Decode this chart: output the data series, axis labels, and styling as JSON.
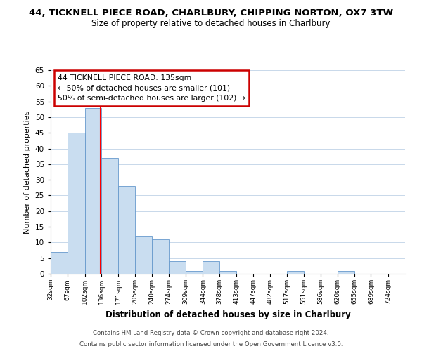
{
  "title": "44, TICKNELL PIECE ROAD, CHARLBURY, CHIPPING NORTON, OX7 3TW",
  "subtitle": "Size of property relative to detached houses in Charlbury",
  "xlabel": "Distribution of detached houses by size in Charlbury",
  "ylabel": "Number of detached properties",
  "bar_edges": [
    32,
    67,
    102,
    136,
    171,
    205,
    240,
    274,
    309,
    344,
    378,
    413,
    447,
    482,
    517,
    551,
    586,
    620,
    655,
    689,
    724
  ],
  "bar_heights": [
    7,
    45,
    53,
    37,
    28,
    12,
    11,
    4,
    1,
    4,
    1,
    0,
    0,
    0,
    1,
    0,
    0,
    1,
    0,
    0
  ],
  "bar_color": "#c9ddf0",
  "bar_edgecolor": "#6699cc",
  "red_line_x": 135,
  "ylim": [
    0,
    65
  ],
  "yticks": [
    0,
    5,
    10,
    15,
    20,
    25,
    30,
    35,
    40,
    45,
    50,
    55,
    60,
    65
  ],
  "xtick_labels": [
    "32sqm",
    "67sqm",
    "102sqm",
    "136sqm",
    "171sqm",
    "205sqm",
    "240sqm",
    "274sqm",
    "309sqm",
    "344sqm",
    "378sqm",
    "413sqm",
    "447sqm",
    "482sqm",
    "517sqm",
    "551sqm",
    "586sqm",
    "620sqm",
    "655sqm",
    "689sqm",
    "724sqm"
  ],
  "annotation_text": "44 TICKNELL PIECE ROAD: 135sqm\n← 50% of detached houses are smaller (101)\n50% of semi-detached houses are larger (102) →",
  "annotation_box_color": "#ffffff",
  "annotation_box_edgecolor": "#cc0000",
  "footer_line1": "Contains HM Land Registry data © Crown copyright and database right 2024.",
  "footer_line2": "Contains public sector information licensed under the Open Government Licence v3.0.",
  "background_color": "#ffffff",
  "grid_color": "#c8d8ea"
}
